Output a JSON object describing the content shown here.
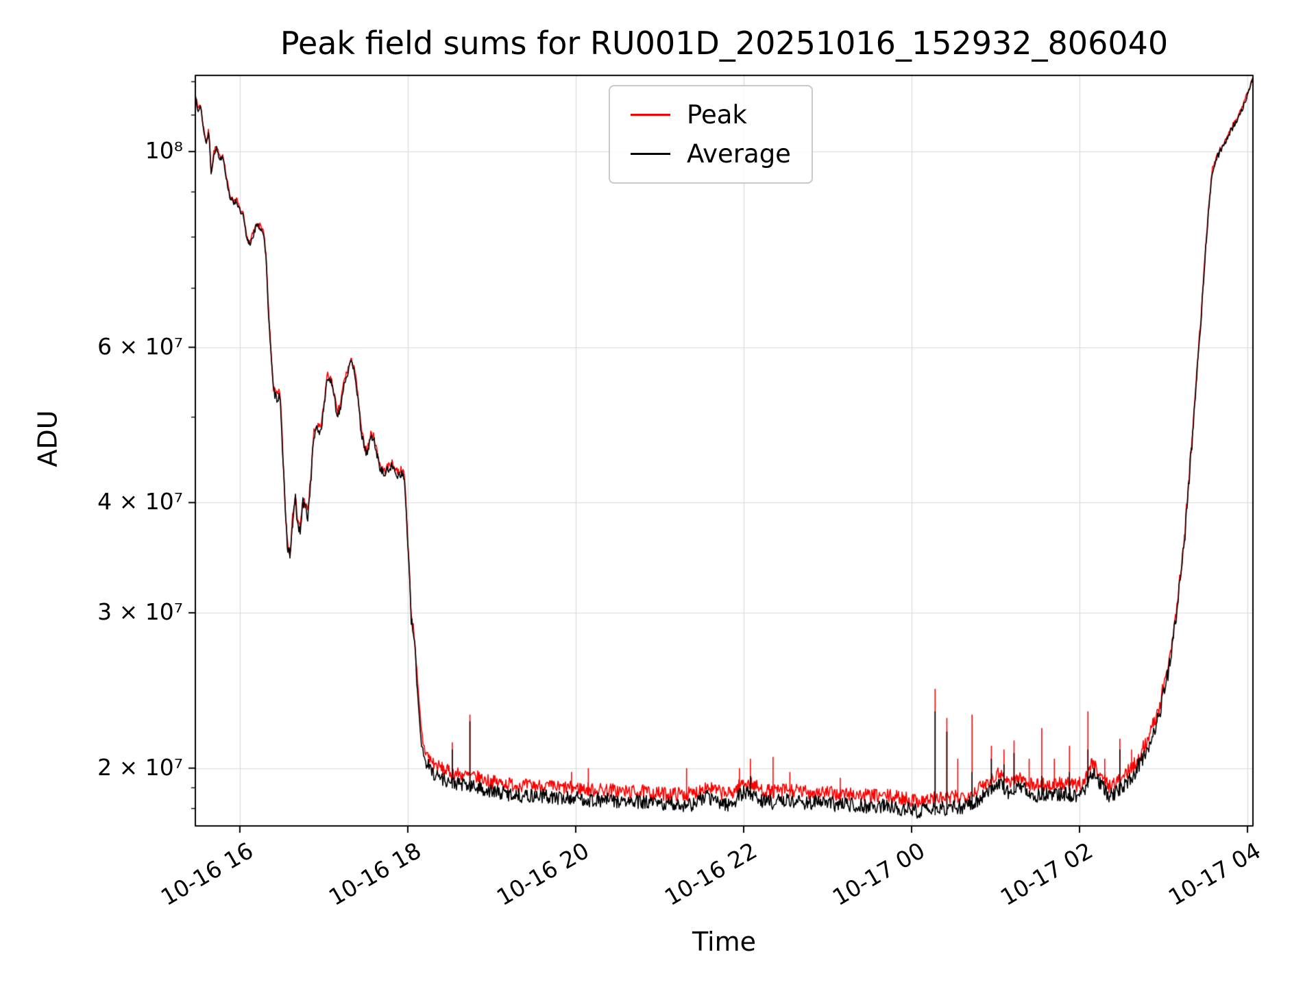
{
  "chart_data": {
    "type": "line",
    "title": "Peak field sums for RU001D_20251016_152932_806040",
    "xlabel": "Time",
    "ylabel": "ADU",
    "yscale": "log",
    "x_unit": "hours since 2025-10-16 00:00",
    "xlim": [
      15.47,
      28.065
    ],
    "ylim": [
      17200000,
      122000000
    ],
    "y_value_multiplier": 10000000,
    "grid": true,
    "grid_color": "#d9d9d9",
    "spine_color": "#000000",
    "xticks": {
      "values": [
        16,
        18,
        20,
        22,
        24,
        26,
        28
      ],
      "labels": [
        "10-16 16",
        "10-16 18",
        "10-16 20",
        "10-16 22",
        "10-17 00",
        "10-17 02",
        "10-17 04"
      ]
    },
    "yticks": {
      "values": [
        20000000,
        30000000,
        40000000,
        60000000,
        100000000
      ],
      "labels": [
        "2 × 10⁷",
        "3 × 10⁷",
        "4 × 10⁷",
        "6 × 10⁷",
        "10⁸"
      ]
    },
    "yticks_minor": [
      18000000,
      19000000,
      50000000,
      70000000,
      80000000,
      90000000,
      110000000,
      120000000
    ],
    "legend": {
      "position": "upper center",
      "entries": [
        "Peak",
        "Average"
      ]
    },
    "x": [
      15.47,
      15.5,
      15.53,
      15.56,
      15.6,
      15.63,
      15.66,
      15.69,
      15.72,
      15.76,
      15.8,
      15.84,
      15.88,
      15.92,
      15.96,
      16.0,
      16.04,
      16.08,
      16.12,
      16.16,
      16.2,
      16.24,
      16.28,
      16.31,
      16.34,
      16.37,
      16.4,
      16.44,
      16.48,
      16.51,
      16.54,
      16.57,
      16.6,
      16.63,
      16.66,
      16.69,
      16.72,
      16.75,
      16.78,
      16.81,
      16.85,
      16.88,
      16.92,
      16.96,
      17.0,
      17.04,
      17.08,
      17.12,
      17.16,
      17.2,
      17.24,
      17.28,
      17.32,
      17.36,
      17.4,
      17.44,
      17.48,
      17.52,
      17.56,
      17.6,
      17.64,
      17.68,
      17.72,
      17.76,
      17.8,
      17.84,
      17.88,
      17.92,
      17.96,
      18.0,
      18.04,
      18.08,
      18.12,
      18.16,
      18.2,
      18.26,
      18.32,
      18.4,
      18.5,
      18.6,
      18.72,
      18.85,
      19.0,
      19.2,
      19.4,
      19.6,
      19.8,
      20.0,
      20.2,
      20.4,
      20.6,
      20.8,
      21.0,
      21.2,
      21.4,
      21.55,
      21.7,
      21.85,
      22.0,
      22.1,
      22.2,
      22.35,
      22.5,
      22.7,
      22.9,
      23.1,
      23.3,
      23.5,
      23.7,
      23.9,
      24.05,
      24.15,
      24.3,
      24.45,
      24.6,
      24.75,
      24.9,
      25.05,
      25.15,
      25.25,
      25.35,
      25.45,
      25.55,
      25.65,
      25.75,
      25.85,
      25.95,
      26.05,
      26.15,
      26.25,
      26.35,
      26.45,
      26.55,
      26.65,
      26.75,
      26.85,
      26.95,
      27.05,
      27.15,
      27.25,
      27.35,
      27.45,
      27.52,
      27.58,
      27.65,
      27.72,
      27.8,
      27.88,
      27.95,
      28.0,
      28.065
    ],
    "series": [
      {
        "name": "Peak",
        "color": "#ff0000",
        "y": [
          11.64,
          11.19,
          11.34,
          10.74,
          10.24,
          10.59,
          9.44,
          9.99,
          10.14,
          9.84,
          9.94,
          9.34,
          8.94,
          8.79,
          8.84,
          8.59,
          8.49,
          7.99,
          7.89,
          8.09,
          8.29,
          8.24,
          8.14,
          7.64,
          6.64,
          5.94,
          5.39,
          5.29,
          5.34,
          4.59,
          3.94,
          3.59,
          3.54,
          3.84,
          4.09,
          3.79,
          3.74,
          4.04,
          3.99,
          3.89,
          4.34,
          4.79,
          4.89,
          4.84,
          5.14,
          5.59,
          5.54,
          5.34,
          5.04,
          5.19,
          5.49,
          5.64,
          5.79,
          5.74,
          5.34,
          4.89,
          4.64,
          4.59,
          4.79,
          4.74,
          4.54,
          4.39,
          4.34,
          4.39,
          4.44,
          4.39,
          4.34,
          4.36,
          4.29,
          3.64,
          2.99,
          2.82,
          2.45,
          2.2,
          2.1,
          2.05,
          2.02,
          2.0,
          1.98,
          1.97,
          1.96,
          1.95,
          1.93,
          1.92,
          1.91,
          1.91,
          1.9,
          1.9,
          1.89,
          1.89,
          1.88,
          1.88,
          1.87,
          1.87,
          1.87,
          1.91,
          1.88,
          1.87,
          1.93,
          1.92,
          1.89,
          1.88,
          1.89,
          1.88,
          1.88,
          1.87,
          1.87,
          1.86,
          1.86,
          1.85,
          1.84,
          1.84,
          1.85,
          1.85,
          1.86,
          1.88,
          1.93,
          1.98,
          1.93,
          1.95,
          1.94,
          1.91,
          1.92,
          1.91,
          1.92,
          1.92,
          1.91,
          1.93,
          2.03,
          1.97,
          1.91,
          1.93,
          1.97,
          2.02,
          2.1,
          2.2,
          2.35,
          2.59,
          2.99,
          3.64,
          4.84,
          6.54,
          8.24,
          9.54,
          9.94,
          10.24,
          10.59,
          10.94,
          11.29,
          11.64,
          12.14
        ]
      },
      {
        "name": "Average",
        "color": "#000000",
        "y": [
          11.6,
          11.15,
          11.3,
          10.7,
          10.2,
          10.55,
          9.4,
          9.95,
          10.1,
          9.8,
          9.9,
          9.3,
          8.9,
          8.75,
          8.8,
          8.55,
          8.45,
          7.95,
          7.85,
          8.05,
          8.25,
          8.2,
          8.1,
          7.6,
          6.6,
          5.9,
          5.35,
          5.25,
          5.3,
          4.55,
          3.9,
          3.55,
          3.5,
          3.8,
          4.05,
          3.75,
          3.7,
          4.0,
          3.95,
          3.85,
          4.3,
          4.75,
          4.85,
          4.8,
          5.1,
          5.55,
          5.5,
          5.3,
          5.0,
          5.15,
          5.45,
          5.6,
          5.75,
          5.7,
          5.3,
          4.85,
          4.6,
          4.55,
          4.75,
          4.7,
          4.5,
          4.35,
          4.3,
          4.35,
          4.4,
          4.35,
          4.3,
          4.32,
          4.25,
          3.6,
          2.95,
          2.78,
          2.4,
          2.15,
          2.05,
          2.0,
          1.97,
          1.95,
          1.93,
          1.92,
          1.91,
          1.9,
          1.88,
          1.87,
          1.86,
          1.86,
          1.85,
          1.85,
          1.84,
          1.84,
          1.83,
          1.83,
          1.82,
          1.82,
          1.82,
          1.86,
          1.83,
          1.82,
          1.88,
          1.87,
          1.84,
          1.83,
          1.84,
          1.83,
          1.83,
          1.82,
          1.82,
          1.81,
          1.81,
          1.8,
          1.79,
          1.79,
          1.8,
          1.8,
          1.81,
          1.83,
          1.88,
          1.93,
          1.88,
          1.9,
          1.89,
          1.86,
          1.87,
          1.86,
          1.87,
          1.87,
          1.86,
          1.88,
          1.98,
          1.92,
          1.86,
          1.88,
          1.92,
          1.97,
          2.05,
          2.15,
          2.3,
          2.55,
          2.95,
          3.6,
          4.8,
          6.5,
          8.2,
          9.5,
          9.9,
          10.2,
          10.55,
          10.9,
          11.25,
          11.6,
          12.1
        ]
      }
    ],
    "spikes": [
      {
        "x": 18.53,
        "peak": 2.14,
        "avg": 2.1
      },
      {
        "x": 18.74,
        "peak": 2.3,
        "avg": 2.26
      },
      {
        "x": 19.95,
        "peak": 1.98,
        "avg": null
      },
      {
        "x": 20.15,
        "peak": 2.0,
        "avg": null
      },
      {
        "x": 21.32,
        "peak": 2.0,
        "avg": null
      },
      {
        "x": 21.95,
        "peak": 2.0,
        "avg": null
      },
      {
        "x": 22.08,
        "peak": 2.05,
        "avg": 1.96
      },
      {
        "x": 22.35,
        "peak": 2.06,
        "avg": null
      },
      {
        "x": 22.55,
        "peak": 1.98,
        "avg": null
      },
      {
        "x": 23.15,
        "peak": 1.95,
        "avg": null
      },
      {
        "x": 24.28,
        "peak": 2.46,
        "avg": 2.32
      },
      {
        "x": 24.42,
        "peak": 2.28,
        "avg": 2.2
      },
      {
        "x": 24.55,
        "peak": 2.05,
        "avg": null
      },
      {
        "x": 24.72,
        "peak": 2.3,
        "avg": 1.98
      },
      {
        "x": 24.95,
        "peak": 2.12,
        "avg": 2.05
      },
      {
        "x": 25.1,
        "peak": 2.1,
        "avg": 2.02
      },
      {
        "x": 25.22,
        "peak": 2.15,
        "avg": 2.08
      },
      {
        "x": 25.4,
        "peak": 2.05,
        "avg": null
      },
      {
        "x": 25.55,
        "peak": 2.22,
        "avg": 1.96
      },
      {
        "x": 25.7,
        "peak": 2.05,
        "avg": null
      },
      {
        "x": 25.88,
        "peak": 2.12,
        "avg": 1.98
      },
      {
        "x": 26.1,
        "peak": 2.32,
        "avg": 2.1
      },
      {
        "x": 26.3,
        "peak": 2.05,
        "avg": null
      },
      {
        "x": 26.48,
        "peak": 2.16,
        "avg": 2.1
      },
      {
        "x": 26.62,
        "peak": 2.1,
        "avg": null
      }
    ],
    "noise_profile": {
      "x": [
        15.47,
        17.9,
        18.15,
        18.4,
        26.6,
        27.0,
        27.4,
        28.065
      ],
      "amplitude": [
        0.07,
        0.05,
        0.04,
        0.035,
        0.035,
        0.05,
        0.08,
        0.08
      ]
    }
  }
}
